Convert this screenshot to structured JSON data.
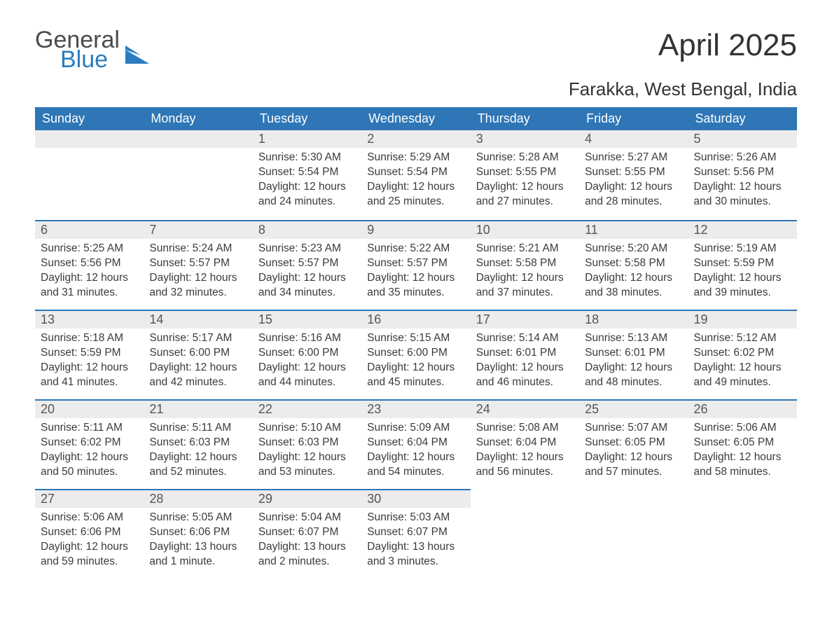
{
  "brand": {
    "line1": "General",
    "line2": "Blue",
    "color1": "#4a4a4a",
    "color2": "#2b7bbf"
  },
  "title": "April 2025",
  "location": "Farakka, West Bengal, India",
  "colors": {
    "header_bg": "#2e76b6",
    "header_text": "#ffffff",
    "daynum_bg": "#ececec",
    "row_divider": "#2e76b6",
    "body_text": "#3b3b3b",
    "page_bg": "#ffffff"
  },
  "weekdays": [
    "Sunday",
    "Monday",
    "Tuesday",
    "Wednesday",
    "Thursday",
    "Friday",
    "Saturday"
  ],
  "layout": {
    "rows": 5,
    "cols": 7,
    "first_weekday_index": 2,
    "days_in_month": 30
  },
  "days": [
    {
      "n": 1,
      "sunrise": "5:30 AM",
      "sunset": "5:54 PM",
      "daylight": "12 hours and 24 minutes."
    },
    {
      "n": 2,
      "sunrise": "5:29 AM",
      "sunset": "5:54 PM",
      "daylight": "12 hours and 25 minutes."
    },
    {
      "n": 3,
      "sunrise": "5:28 AM",
      "sunset": "5:55 PM",
      "daylight": "12 hours and 27 minutes."
    },
    {
      "n": 4,
      "sunrise": "5:27 AM",
      "sunset": "5:55 PM",
      "daylight": "12 hours and 28 minutes."
    },
    {
      "n": 5,
      "sunrise": "5:26 AM",
      "sunset": "5:56 PM",
      "daylight": "12 hours and 30 minutes."
    },
    {
      "n": 6,
      "sunrise": "5:25 AM",
      "sunset": "5:56 PM",
      "daylight": "12 hours and 31 minutes."
    },
    {
      "n": 7,
      "sunrise": "5:24 AM",
      "sunset": "5:57 PM",
      "daylight": "12 hours and 32 minutes."
    },
    {
      "n": 8,
      "sunrise": "5:23 AM",
      "sunset": "5:57 PM",
      "daylight": "12 hours and 34 minutes."
    },
    {
      "n": 9,
      "sunrise": "5:22 AM",
      "sunset": "5:57 PM",
      "daylight": "12 hours and 35 minutes."
    },
    {
      "n": 10,
      "sunrise": "5:21 AM",
      "sunset": "5:58 PM",
      "daylight": "12 hours and 37 minutes."
    },
    {
      "n": 11,
      "sunrise": "5:20 AM",
      "sunset": "5:58 PM",
      "daylight": "12 hours and 38 minutes."
    },
    {
      "n": 12,
      "sunrise": "5:19 AM",
      "sunset": "5:59 PM",
      "daylight": "12 hours and 39 minutes."
    },
    {
      "n": 13,
      "sunrise": "5:18 AM",
      "sunset": "5:59 PM",
      "daylight": "12 hours and 41 minutes."
    },
    {
      "n": 14,
      "sunrise": "5:17 AM",
      "sunset": "6:00 PM",
      "daylight": "12 hours and 42 minutes."
    },
    {
      "n": 15,
      "sunrise": "5:16 AM",
      "sunset": "6:00 PM",
      "daylight": "12 hours and 44 minutes."
    },
    {
      "n": 16,
      "sunrise": "5:15 AM",
      "sunset": "6:00 PM",
      "daylight": "12 hours and 45 minutes."
    },
    {
      "n": 17,
      "sunrise": "5:14 AM",
      "sunset": "6:01 PM",
      "daylight": "12 hours and 46 minutes."
    },
    {
      "n": 18,
      "sunrise": "5:13 AM",
      "sunset": "6:01 PM",
      "daylight": "12 hours and 48 minutes."
    },
    {
      "n": 19,
      "sunrise": "5:12 AM",
      "sunset": "6:02 PM",
      "daylight": "12 hours and 49 minutes."
    },
    {
      "n": 20,
      "sunrise": "5:11 AM",
      "sunset": "6:02 PM",
      "daylight": "12 hours and 50 minutes."
    },
    {
      "n": 21,
      "sunrise": "5:11 AM",
      "sunset": "6:03 PM",
      "daylight": "12 hours and 52 minutes."
    },
    {
      "n": 22,
      "sunrise": "5:10 AM",
      "sunset": "6:03 PM",
      "daylight": "12 hours and 53 minutes."
    },
    {
      "n": 23,
      "sunrise": "5:09 AM",
      "sunset": "6:04 PM",
      "daylight": "12 hours and 54 minutes."
    },
    {
      "n": 24,
      "sunrise": "5:08 AM",
      "sunset": "6:04 PM",
      "daylight": "12 hours and 56 minutes."
    },
    {
      "n": 25,
      "sunrise": "5:07 AM",
      "sunset": "6:05 PM",
      "daylight": "12 hours and 57 minutes."
    },
    {
      "n": 26,
      "sunrise": "5:06 AM",
      "sunset": "6:05 PM",
      "daylight": "12 hours and 58 minutes."
    },
    {
      "n": 27,
      "sunrise": "5:06 AM",
      "sunset": "6:06 PM",
      "daylight": "12 hours and 59 minutes."
    },
    {
      "n": 28,
      "sunrise": "5:05 AM",
      "sunset": "6:06 PM",
      "daylight": "13 hours and 1 minute."
    },
    {
      "n": 29,
      "sunrise": "5:04 AM",
      "sunset": "6:07 PM",
      "daylight": "13 hours and 2 minutes."
    },
    {
      "n": 30,
      "sunrise": "5:03 AM",
      "sunset": "6:07 PM",
      "daylight": "13 hours and 3 minutes."
    }
  ],
  "labels": {
    "sunrise": "Sunrise: ",
    "sunset": "Sunset: ",
    "daylight": "Daylight: "
  }
}
